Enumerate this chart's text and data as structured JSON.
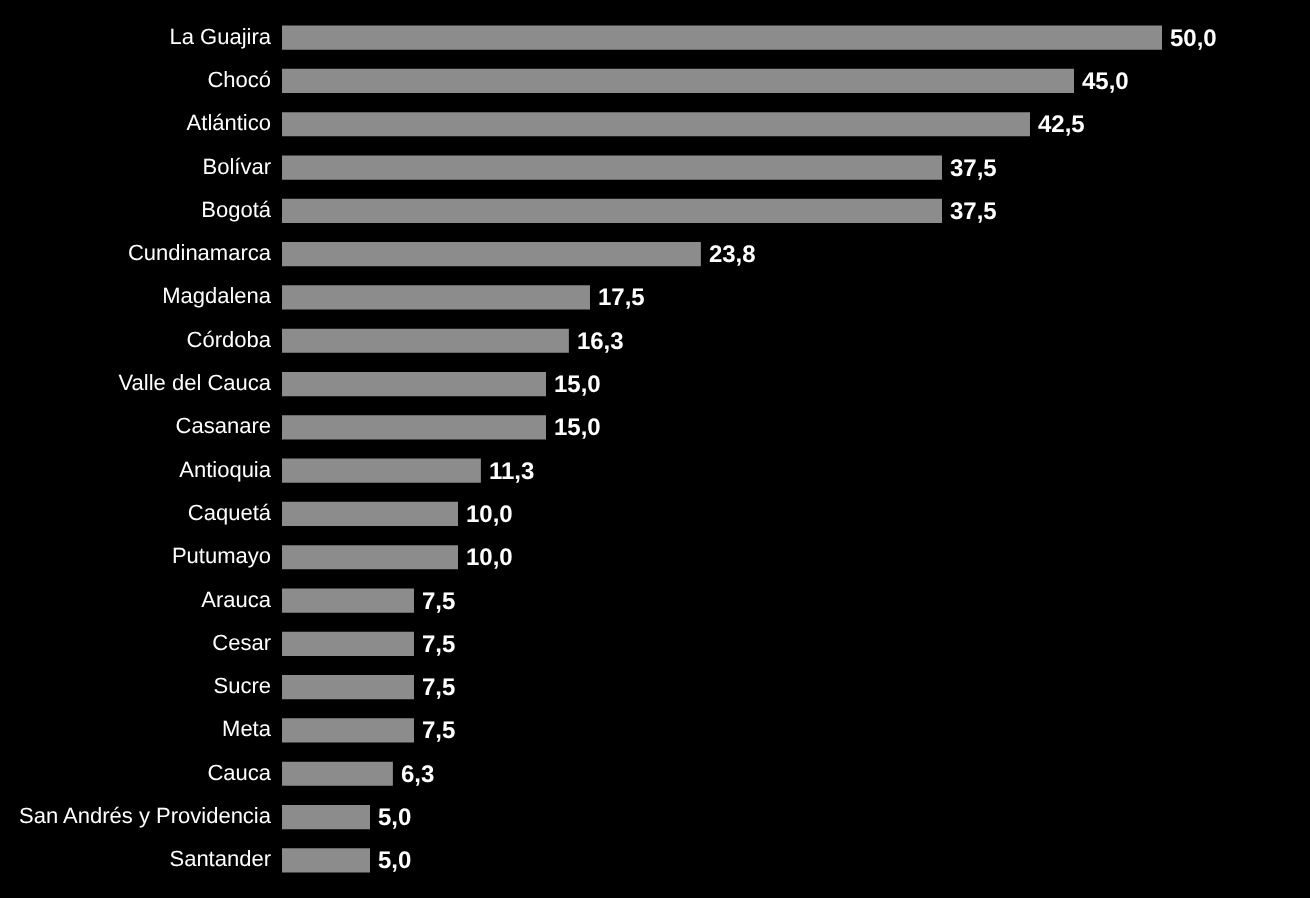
{
  "chart_data": {
    "type": "bar",
    "orientation": "horizontal",
    "categories": [
      "La Guajira",
      "Chocó",
      "Atlántico",
      "Bolívar",
      "Bogotá",
      "Cundinamarca",
      "Magdalena",
      "Córdoba",
      "Valle del Cauca",
      "Casanare",
      "Antioquia",
      "Caquetá",
      "Putumayo",
      "Arauca",
      "Cesar",
      "Sucre",
      "Meta",
      "Cauca",
      "San Andrés y Providencia",
      "Santander"
    ],
    "values": [
      50.0,
      45.0,
      42.5,
      37.5,
      37.5,
      23.8,
      17.5,
      16.3,
      15.0,
      15.0,
      11.3,
      10.0,
      10.0,
      7.5,
      7.5,
      7.5,
      7.5,
      6.3,
      5.0,
      5.0
    ],
    "value_labels": [
      "50,0",
      "45,0",
      "42,5",
      "37,5",
      "37,5",
      "23,8",
      "17,5",
      "16,3",
      "15,0",
      "15,0",
      "11,3",
      "10,0",
      "10,0",
      "7,5",
      "7,5",
      "7,5",
      "7,5",
      "6,3",
      "5,0",
      "5,0"
    ],
    "color": "#8c8c8c"
  }
}
